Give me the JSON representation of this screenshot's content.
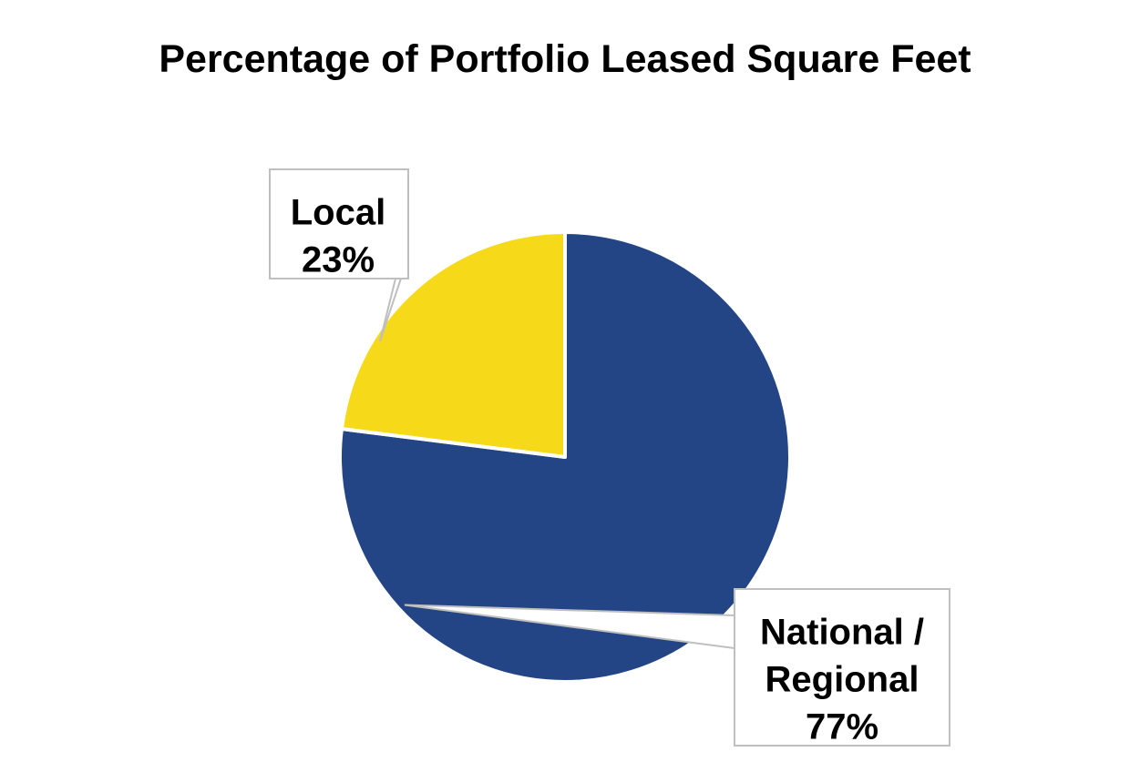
{
  "chart_data": {
    "type": "pie",
    "title": "Percentage of Portfolio Leased Square Feet",
    "slices": [
      {
        "label_lines": [
          "National /",
          "Regional"
        ],
        "value": 77,
        "value_label": "77%",
        "color": "#234586"
      },
      {
        "label_lines": [
          "Local"
        ],
        "value": 23,
        "value_label": "23%",
        "color": "#F6DA1A"
      }
    ]
  },
  "colors": {
    "background": "#FFFFFF",
    "slice_border": "#FFFFFF",
    "callout_border": "#BFBFBF",
    "text": "#000000"
  }
}
